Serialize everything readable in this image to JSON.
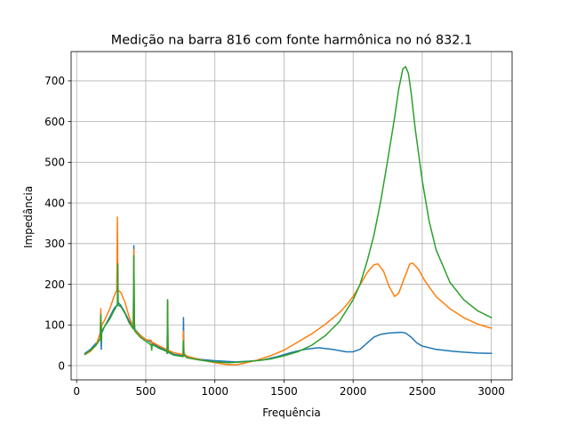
{
  "chart_data": {
    "type": "line",
    "title": "Medição na barra 816 com fonte harmônica no nó 832.1",
    "xlabel": "Frequência",
    "ylabel": "Impedância",
    "xlim": [
      -40,
      3150
    ],
    "ylim": [
      -35,
      772
    ],
    "xticks": [
      0,
      500,
      1000,
      1500,
      2000,
      2500,
      3000
    ],
    "yticks": [
      0,
      100,
      200,
      300,
      400,
      500,
      600,
      700
    ],
    "grid": true,
    "legend": "none",
    "series": [
      {
        "color": "#1f77b4",
        "points": [
          [
            60,
            30
          ],
          [
            100,
            40
          ],
          [
            140,
            55
          ],
          [
            170,
            65
          ],
          [
            175,
            90
          ],
          [
            178,
            40
          ],
          [
            181,
            80
          ],
          [
            200,
            95
          ],
          [
            240,
            120
          ],
          [
            270,
            140
          ],
          [
            295,
            150
          ],
          [
            298,
            230
          ],
          [
            300,
            155
          ],
          [
            320,
            148
          ],
          [
            350,
            130
          ],
          [
            380,
            110
          ],
          [
            410,
            95
          ],
          [
            414,
            295
          ],
          [
            417,
            120
          ],
          [
            420,
            90
          ],
          [
            460,
            75
          ],
          [
            500,
            64
          ],
          [
            540,
            57
          ],
          [
            543,
            40
          ],
          [
            546,
            56
          ],
          [
            600,
            45
          ],
          [
            650,
            38
          ],
          [
            655,
            30
          ],
          [
            658,
            160
          ],
          [
            661,
            35
          ],
          [
            700,
            28
          ],
          [
            770,
            24
          ],
          [
            773,
            118
          ],
          [
            776,
            28
          ],
          [
            800,
            21
          ],
          [
            900,
            15
          ],
          [
            1000,
            12
          ],
          [
            1100,
            10
          ],
          [
            1150,
            9
          ],
          [
            1250,
            11
          ],
          [
            1350,
            14
          ],
          [
            1450,
            22
          ],
          [
            1550,
            32
          ],
          [
            1650,
            40
          ],
          [
            1750,
            44
          ],
          [
            1850,
            40
          ],
          [
            1950,
            34
          ],
          [
            2000,
            34
          ],
          [
            2050,
            40
          ],
          [
            2100,
            55
          ],
          [
            2150,
            70
          ],
          [
            2200,
            77
          ],
          [
            2260,
            80
          ],
          [
            2300,
            81
          ],
          [
            2350,
            82
          ],
          [
            2380,
            80
          ],
          [
            2420,
            70
          ],
          [
            2460,
            56
          ],
          [
            2500,
            48
          ],
          [
            2600,
            40
          ],
          [
            2700,
            36
          ],
          [
            2800,
            33
          ],
          [
            2900,
            31
          ],
          [
            3000,
            30
          ]
        ]
      },
      {
        "color": "#ff7f0e",
        "points": [
          [
            60,
            27
          ],
          [
            100,
            35
          ],
          [
            140,
            50
          ],
          [
            170,
            80
          ],
          [
            175,
            140
          ],
          [
            178,
            70
          ],
          [
            181,
            100
          ],
          [
            200,
            110
          ],
          [
            240,
            140
          ],
          [
            270,
            170
          ],
          [
            290,
            185
          ],
          [
            295,
            365
          ],
          [
            298,
            200
          ],
          [
            300,
            185
          ],
          [
            320,
            180
          ],
          [
            350,
            155
          ],
          [
            380,
            120
          ],
          [
            410,
            95
          ],
          [
            414,
            285
          ],
          [
            417,
            110
          ],
          [
            420,
            88
          ],
          [
            460,
            74
          ],
          [
            500,
            64
          ],
          [
            540,
            62
          ],
          [
            543,
            42
          ],
          [
            546,
            58
          ],
          [
            600,
            48
          ],
          [
            650,
            40
          ],
          [
            655,
            35
          ],
          [
            658,
            155
          ],
          [
            661,
            38
          ],
          [
            700,
            32
          ],
          [
            770,
            27
          ],
          [
            773,
            85
          ],
          [
            776,
            30
          ],
          [
            800,
            23
          ],
          [
            900,
            14
          ],
          [
            1000,
            7
          ],
          [
            1080,
            3
          ],
          [
            1150,
            2
          ],
          [
            1200,
            5
          ],
          [
            1300,
            13
          ],
          [
            1400,
            24
          ],
          [
            1500,
            38
          ],
          [
            1600,
            58
          ],
          [
            1700,
            78
          ],
          [
            1800,
            102
          ],
          [
            1900,
            130
          ],
          [
            1950,
            148
          ],
          [
            2000,
            170
          ],
          [
            2050,
            198
          ],
          [
            2100,
            228
          ],
          [
            2150,
            248
          ],
          [
            2180,
            250
          ],
          [
            2220,
            232
          ],
          [
            2260,
            195
          ],
          [
            2300,
            170
          ],
          [
            2330,
            178
          ],
          [
            2370,
            215
          ],
          [
            2410,
            250
          ],
          [
            2430,
            252
          ],
          [
            2470,
            238
          ],
          [
            2520,
            208
          ],
          [
            2600,
            170
          ],
          [
            2700,
            140
          ],
          [
            2800,
            118
          ],
          [
            2900,
            102
          ],
          [
            3000,
            92
          ]
        ]
      },
      {
        "color": "#2ca02c",
        "points": [
          [
            60,
            28
          ],
          [
            100,
            38
          ],
          [
            140,
            50
          ],
          [
            170,
            65
          ],
          [
            175,
            125
          ],
          [
            178,
            60
          ],
          [
            181,
            85
          ],
          [
            200,
            95
          ],
          [
            240,
            115
          ],
          [
            270,
            135
          ],
          [
            295,
            150
          ],
          [
            298,
            250
          ],
          [
            300,
            148
          ],
          [
            320,
            145
          ],
          [
            350,
            128
          ],
          [
            380,
            105
          ],
          [
            410,
            90
          ],
          [
            414,
            270
          ],
          [
            417,
            108
          ],
          [
            420,
            85
          ],
          [
            460,
            70
          ],
          [
            500,
            60
          ],
          [
            540,
            50
          ],
          [
            543,
            38
          ],
          [
            546,
            52
          ],
          [
            600,
            42
          ],
          [
            650,
            35
          ],
          [
            655,
            30
          ],
          [
            658,
            162
          ],
          [
            661,
            33
          ],
          [
            700,
            26
          ],
          [
            770,
            22
          ],
          [
            773,
            60
          ],
          [
            776,
            25
          ],
          [
            800,
            19
          ],
          [
            900,
            13
          ],
          [
            1000,
            9
          ],
          [
            1100,
            7
          ],
          [
            1200,
            9
          ],
          [
            1300,
            12
          ],
          [
            1400,
            16
          ],
          [
            1500,
            24
          ],
          [
            1600,
            34
          ],
          [
            1700,
            50
          ],
          [
            1800,
            74
          ],
          [
            1900,
            108
          ],
          [
            2000,
            162
          ],
          [
            2050,
            200
          ],
          [
            2100,
            255
          ],
          [
            2150,
            320
          ],
          [
            2200,
            405
          ],
          [
            2250,
            505
          ],
          [
            2300,
            610
          ],
          [
            2330,
            680
          ],
          [
            2360,
            730
          ],
          [
            2380,
            735
          ],
          [
            2400,
            718
          ],
          [
            2420,
            670
          ],
          [
            2450,
            580
          ],
          [
            2500,
            455
          ],
          [
            2550,
            355
          ],
          [
            2600,
            285
          ],
          [
            2700,
            205
          ],
          [
            2800,
            162
          ],
          [
            2900,
            135
          ],
          [
            3000,
            118
          ]
        ]
      }
    ]
  }
}
